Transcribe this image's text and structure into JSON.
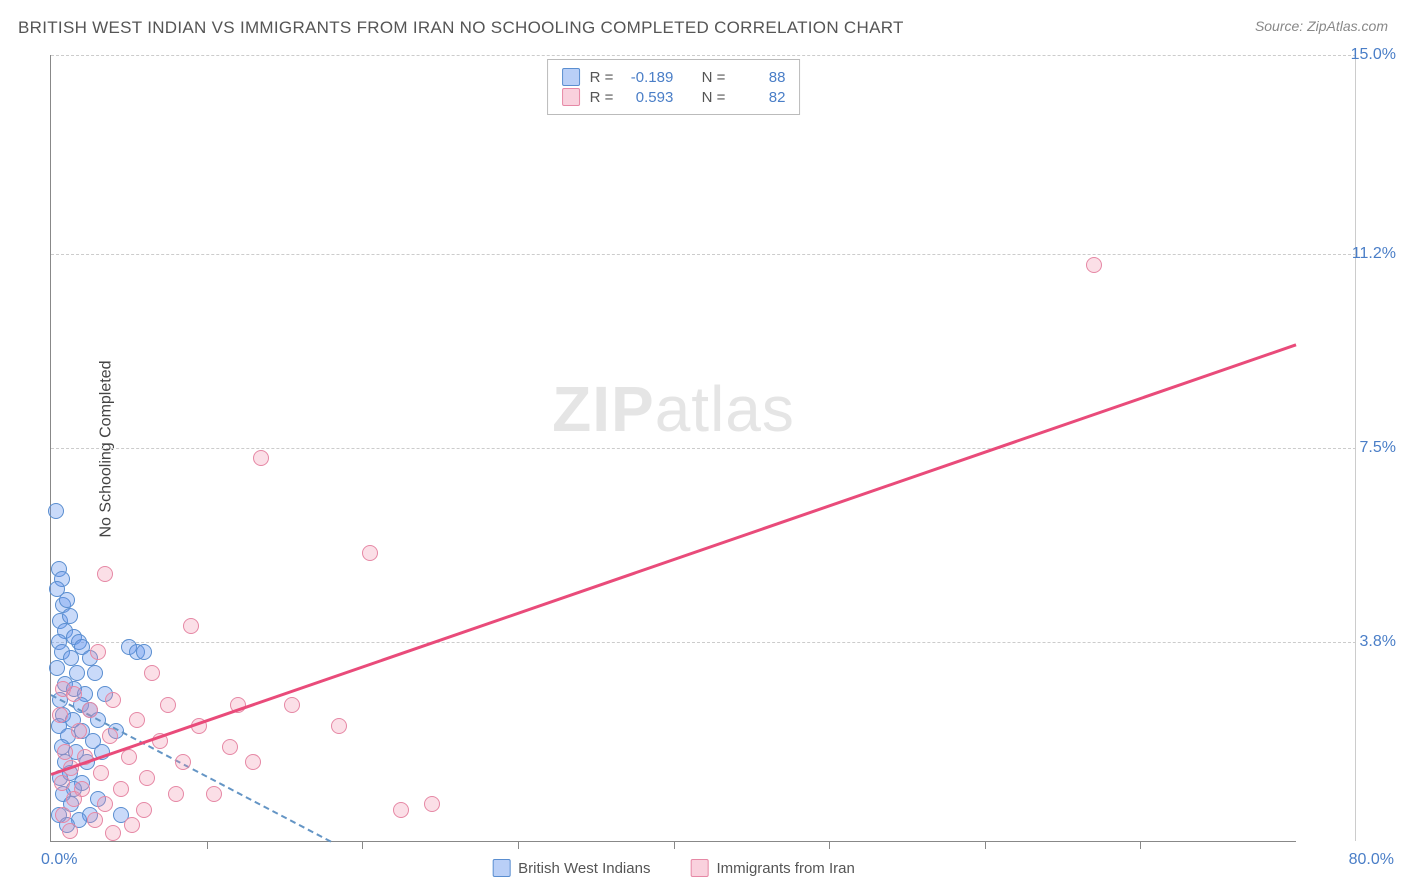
{
  "title": "BRITISH WEST INDIAN VS IMMIGRANTS FROM IRAN NO SCHOOLING COMPLETED CORRELATION CHART",
  "source": "Source: ZipAtlas.com",
  "watermark_a": "ZIP",
  "watermark_b": "atlas",
  "y_axis_title": "No Schooling Completed",
  "chart": {
    "type": "scatter",
    "background_color": "#ffffff",
    "grid_color": "#cccccc",
    "axis_color": "#888888",
    "xlim": [
      0,
      80
    ],
    "ylim": [
      0,
      15
    ],
    "x_ticks_major": [
      0,
      80
    ],
    "x_ticks_minor": [
      10,
      20,
      30,
      40,
      50,
      60,
      70
    ],
    "y_ticks": [
      3.8,
      7.5,
      11.2,
      15.0
    ],
    "x_label_min": "0.0%",
    "x_label_max": "80.0%",
    "y_labels": [
      "3.8%",
      "7.5%",
      "11.2%",
      "15.0%"
    ],
    "point_radius": 8,
    "series": [
      {
        "name": "British West Indians",
        "color_fill": "rgba(100,149,237,0.35)",
        "color_stroke": "#5a8ed0",
        "r": "-0.189",
        "n": "88",
        "trend": {
          "x1": 0,
          "y1": 2.8,
          "x2": 18,
          "y2": 0,
          "dashed": true
        },
        "points": [
          [
            0.3,
            6.3
          ],
          [
            0.5,
            5.2
          ],
          [
            0.7,
            5.0
          ],
          [
            0.4,
            4.8
          ],
          [
            0.8,
            4.5
          ],
          [
            1.0,
            4.6
          ],
          [
            0.6,
            4.2
          ],
          [
            1.2,
            4.3
          ],
          [
            0.9,
            4.0
          ],
          [
            1.5,
            3.9
          ],
          [
            0.5,
            3.8
          ],
          [
            1.8,
            3.8
          ],
          [
            2.0,
            3.7
          ],
          [
            0.7,
            3.6
          ],
          [
            1.3,
            3.5
          ],
          [
            2.5,
            3.5
          ],
          [
            0.4,
            3.3
          ],
          [
            1.7,
            3.2
          ],
          [
            2.8,
            3.2
          ],
          [
            0.9,
            3.0
          ],
          [
            1.5,
            2.9
          ],
          [
            2.2,
            2.8
          ],
          [
            3.5,
            2.8
          ],
          [
            0.6,
            2.7
          ],
          [
            1.9,
            2.6
          ],
          [
            2.5,
            2.5
          ],
          [
            0.8,
            2.4
          ],
          [
            1.4,
            2.3
          ],
          [
            3.0,
            2.3
          ],
          [
            0.5,
            2.2
          ],
          [
            2.0,
            2.1
          ],
          [
            4.2,
            2.1
          ],
          [
            1.1,
            2.0
          ],
          [
            2.7,
            1.9
          ],
          [
            0.7,
            1.8
          ],
          [
            1.6,
            1.7
          ],
          [
            3.3,
            1.7
          ],
          [
            0.9,
            1.5
          ],
          [
            2.3,
            1.5
          ],
          [
            5.0,
            3.7
          ],
          [
            5.5,
            3.6
          ],
          [
            6.0,
            3.6
          ],
          [
            1.2,
            1.3
          ],
          [
            0.6,
            1.2
          ],
          [
            2.0,
            1.1
          ],
          [
            1.5,
            1.0
          ],
          [
            0.8,
            0.9
          ],
          [
            3.0,
            0.8
          ],
          [
            1.3,
            0.7
          ],
          [
            0.5,
            0.5
          ],
          [
            2.5,
            0.5
          ],
          [
            1.8,
            0.4
          ],
          [
            4.5,
            0.5
          ],
          [
            1.0,
            0.3
          ]
        ]
      },
      {
        "name": "Immigrants from Iran",
        "color_fill": "rgba(240,140,170,0.28)",
        "color_stroke": "#e688a5",
        "r": "0.593",
        "n": "82",
        "trend": {
          "x1": 0,
          "y1": 1.3,
          "x2": 80,
          "y2": 9.5,
          "dashed": false
        },
        "points": [
          [
            67,
            11.0
          ],
          [
            13.5,
            7.3
          ],
          [
            20.5,
            5.5
          ],
          [
            3.5,
            5.1
          ],
          [
            9.0,
            4.1
          ],
          [
            3.0,
            3.6
          ],
          [
            6.5,
            3.2
          ],
          [
            0.8,
            2.9
          ],
          [
            1.5,
            2.8
          ],
          [
            4.0,
            2.7
          ],
          [
            7.5,
            2.6
          ],
          [
            12.0,
            2.6
          ],
          [
            15.5,
            2.6
          ],
          [
            2.5,
            2.5
          ],
          [
            0.6,
            2.4
          ],
          [
            5.5,
            2.3
          ],
          [
            9.5,
            2.2
          ],
          [
            18.5,
            2.2
          ],
          [
            1.8,
            2.1
          ],
          [
            3.8,
            2.0
          ],
          [
            7.0,
            1.9
          ],
          [
            11.5,
            1.8
          ],
          [
            0.9,
            1.7
          ],
          [
            2.2,
            1.6
          ],
          [
            5.0,
            1.6
          ],
          [
            8.5,
            1.5
          ],
          [
            13.0,
            1.5
          ],
          [
            1.3,
            1.4
          ],
          [
            3.2,
            1.3
          ],
          [
            6.2,
            1.2
          ],
          [
            0.7,
            1.1
          ],
          [
            2.0,
            1.0
          ],
          [
            4.5,
            1.0
          ],
          [
            8.0,
            0.9
          ],
          [
            10.5,
            0.9
          ],
          [
            1.5,
            0.8
          ],
          [
            3.5,
            0.7
          ],
          [
            6.0,
            0.6
          ],
          [
            22.5,
            0.6
          ],
          [
            24.5,
            0.7
          ],
          [
            0.8,
            0.5
          ],
          [
            2.8,
            0.4
          ],
          [
            5.2,
            0.3
          ],
          [
            1.2,
            0.2
          ],
          [
            4.0,
            0.15
          ]
        ]
      }
    ]
  },
  "stats_box": {
    "r_label": "R =",
    "n_label": "N ="
  },
  "label_fontsize": 16,
  "title_fontsize": 17
}
